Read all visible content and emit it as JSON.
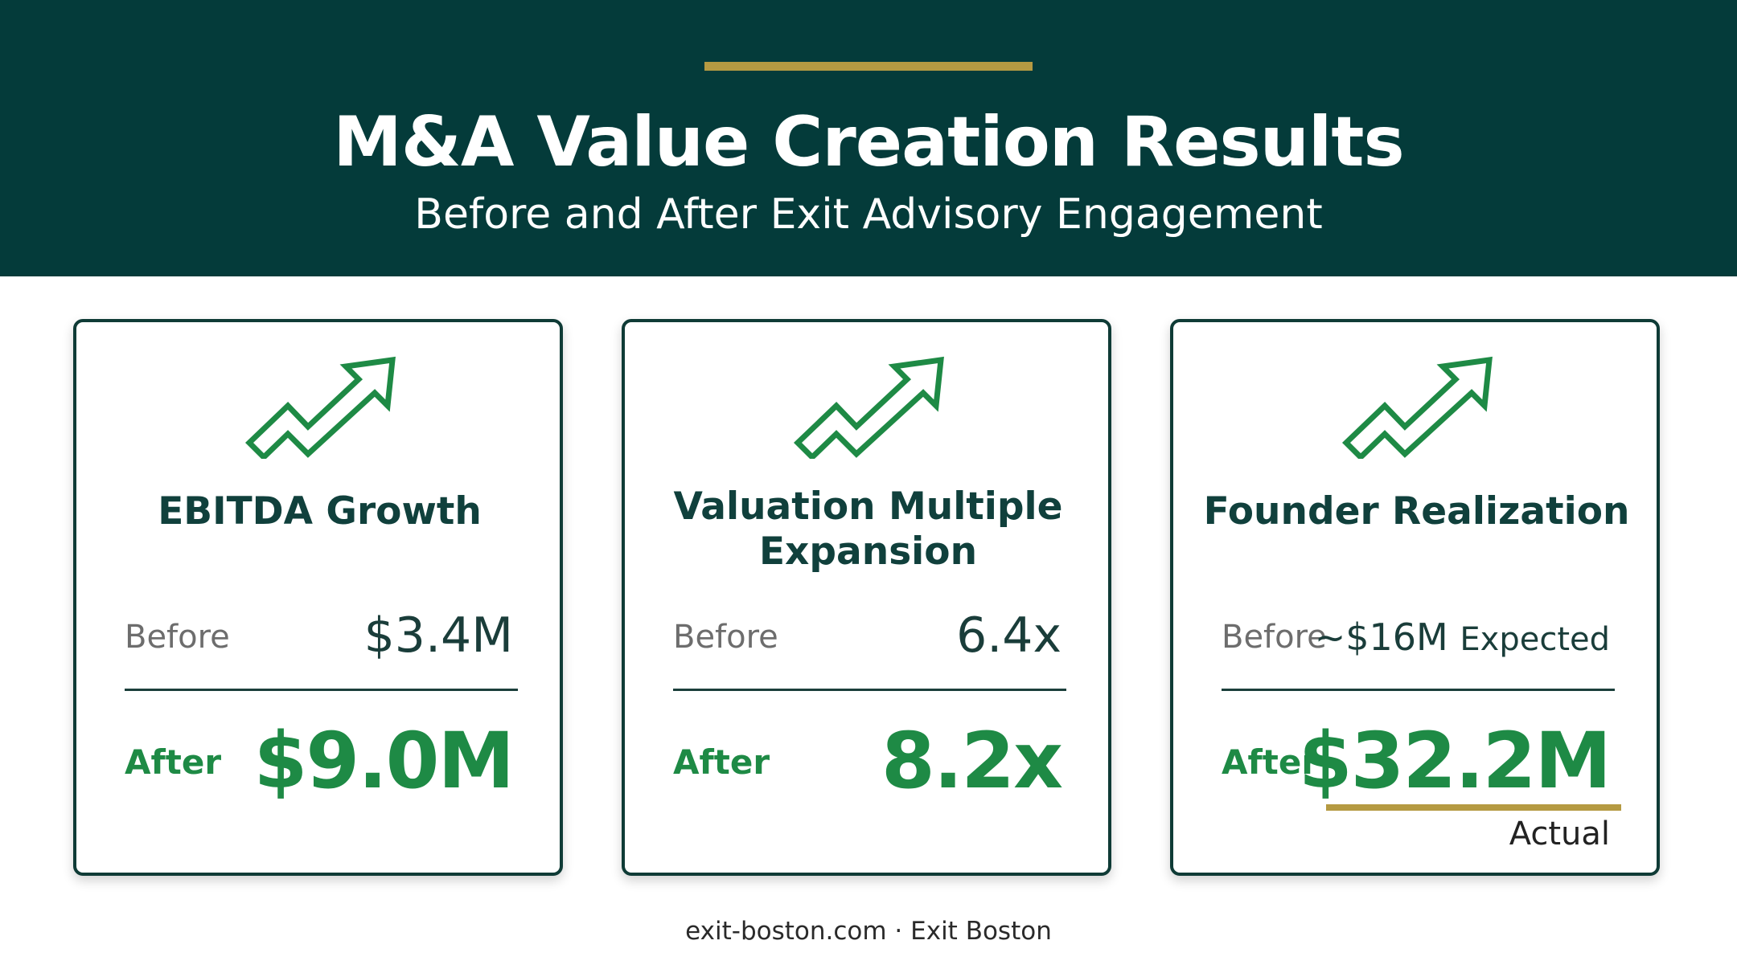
{
  "header": {
    "title": "M&A Value Creation Results",
    "subtitle": "Before and After Exit Advisory Engagement"
  },
  "cards": [
    {
      "icon": "trend-up-arrow-icon",
      "heading": "EBITDA Growth",
      "before_label": "Before",
      "before_value": "$3.4M",
      "after_label": "After",
      "after_value": "$9.0M"
    },
    {
      "icon": "trend-up-arrow-icon",
      "heading": "Valuation Multiple Expansion",
      "before_label": "Before",
      "before_value": "6.4x",
      "after_label": "After",
      "after_value": "8.2x"
    },
    {
      "icon": "trend-up-arrow-icon",
      "heading": "Founder Realization",
      "before_label": "Before",
      "before_value": "~$16M",
      "before_suffix": "Expected",
      "after_label": "After",
      "after_value": "$32.2M",
      "after_caption": "Actual"
    }
  ],
  "footer": {
    "text": "exit-boston.com · Exit Boston"
  },
  "colors": {
    "header_bg": "#043b3a",
    "accent_gold": "#b59a42",
    "positive_green": "#1e8a45",
    "heading_dark": "#10403c"
  }
}
